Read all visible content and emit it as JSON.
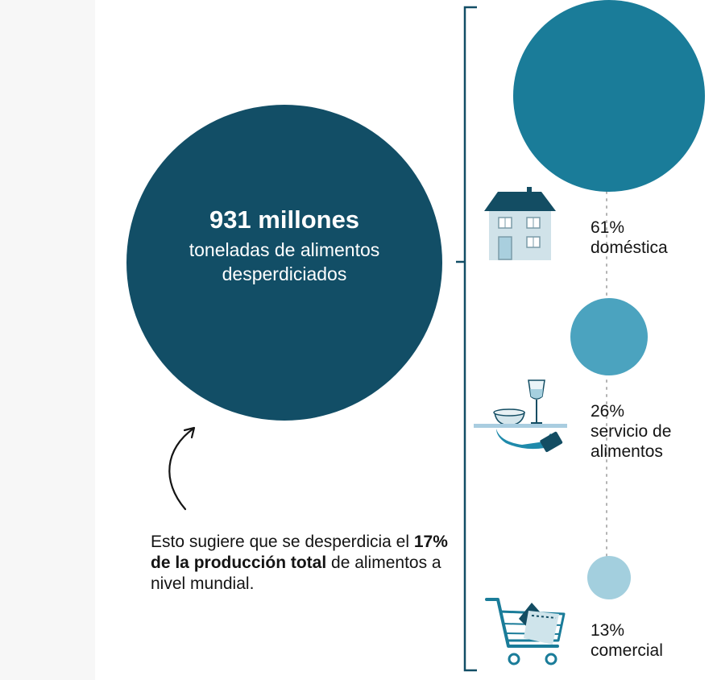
{
  "total": {
    "value": "931 millones",
    "description": "toneladas de alimentos desperdiciados"
  },
  "note": {
    "before": "Esto sugiere que se desperdicia el ",
    "bold": "17% de la producción total",
    "after": " de alimentos a nivel mundial."
  },
  "categories": [
    {
      "percent": "61%",
      "name": "doméstica",
      "share": 61,
      "icon": "house-icon",
      "color": "#1a7c99"
    },
    {
      "percent": "26%",
      "name": "servicio de alimentos",
      "share": 26,
      "icon": "serving-tray-icon",
      "color": "#4ba3bf"
    },
    {
      "percent": "13%",
      "name": "comercial",
      "share": 13,
      "icon": "shopping-cart-icon",
      "color": "#a3cfde"
    }
  ],
  "colors": {
    "total_circle": "#124e66",
    "bracket": "#124e66",
    "text": "#141414"
  }
}
